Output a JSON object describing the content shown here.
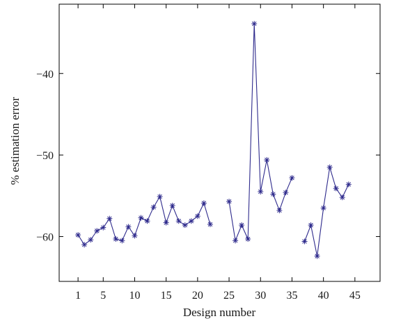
{
  "chart_data": {
    "type": "line",
    "title": "",
    "xlabel": "Design number",
    "ylabel": "% estimation error",
    "xlim": [
      -2,
      49
    ],
    "ylim": [
      -65.5,
      -31.5
    ],
    "xticks": [
      1,
      5,
      10,
      15,
      20,
      25,
      30,
      35,
      40,
      45
    ],
    "yticks": [
      -60,
      -50,
      -40
    ],
    "grid": false,
    "legend": "none",
    "colors": {
      "series": "#2e2a8c",
      "axis": "#000000"
    },
    "series": [
      {
        "marker": "asterisk",
        "segments": [
          {
            "x": [
              1,
              2,
              3,
              4,
              5,
              6,
              7,
              8,
              9,
              10,
              11,
              12,
              13,
              14,
              15,
              16,
              17,
              18,
              19,
              20,
              21,
              22
            ],
            "y": [
              -59.8,
              -61.0,
              -60.4,
              -59.3,
              -58.9,
              -57.8,
              -60.3,
              -60.5,
              -58.8,
              -59.9,
              -57.7,
              -58.1,
              -56.4,
              -55.1,
              -58.3,
              -56.2,
              -58.1,
              -58.6,
              -58.1,
              -57.5,
              -55.9,
              -58.5
            ]
          },
          {
            "x": [
              25,
              26,
              27,
              28,
              29,
              30,
              31,
              32,
              33,
              34,
              35
            ],
            "y": [
              -55.7,
              -60.5,
              -58.6,
              -60.3,
              -33.9,
              -54.5,
              -50.6,
              -54.8,
              -56.8,
              -54.6,
              -52.8
            ]
          },
          {
            "x": [
              37,
              38,
              39,
              40,
              41,
              42,
              43,
              44
            ],
            "y": [
              -60.6,
              -58.6,
              -62.4,
              -56.5,
              -51.5,
              -54.1,
              -55.2,
              -53.6
            ]
          }
        ]
      }
    ]
  }
}
